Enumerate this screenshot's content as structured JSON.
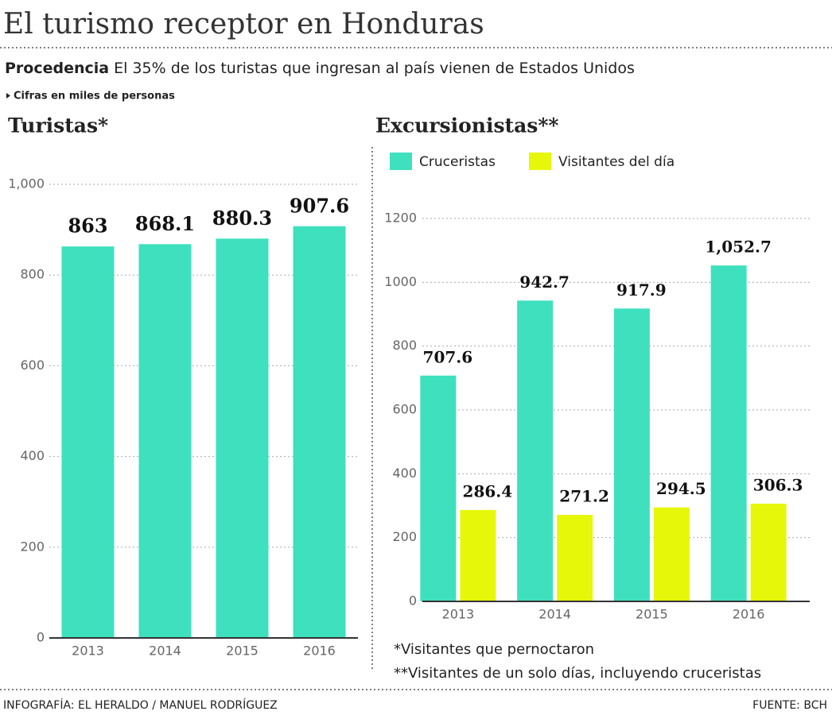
{
  "header": {
    "title": "El turismo receptor en Honduras",
    "lead": "Procedencia",
    "subtitle": "El 35% de los turistas que ingresan al país vienen de Estados Unidos",
    "note": "Cifras en miles de personas"
  },
  "chart_data": [
    {
      "type": "bar",
      "title": "Turistas*",
      "categories": [
        "2013",
        "2014",
        "2015",
        "2016"
      ],
      "values": [
        863,
        868.1,
        880.3,
        907.6
      ],
      "color": "#3fe0be",
      "ylim": [
        0,
        1000
      ],
      "yticks": [
        0,
        200,
        400,
        600,
        800,
        {
          "value": 1000,
          "label": "1,000"
        }
      ],
      "grid": true
    },
    {
      "type": "grouped-bar",
      "title": "Excursionistas**",
      "categories": [
        "2013",
        "2014",
        "2015",
        "2016"
      ],
      "series": [
        {
          "name": "Cruceristas",
          "color": "#3fe0be",
          "values": [
            707.6,
            942.7,
            917.9,
            1052.7
          ],
          "value_labels": [
            "707.6",
            "942.7",
            "917.9",
            "1,052.7"
          ]
        },
        {
          "name": "Visitantes del día",
          "color": "#e6f70a",
          "values": [
            286.4,
            271.2,
            294.5,
            306.3
          ]
        }
      ],
      "ylim": [
        0,
        1200
      ],
      "yticks": [
        0,
        200,
        400,
        600,
        800,
        1000,
        1200
      ],
      "grid": true,
      "legend": "top"
    }
  ],
  "footnotes": [
    "*Visitantes que pernoctaron",
    "**Visitantes de un solo días, incluyendo cruceristas"
  ],
  "footer": {
    "credit": "INFOGRAFÍA: EL HERALDO / MANUEL RODRÍGUEZ",
    "source": "FUENTE: BCH"
  }
}
